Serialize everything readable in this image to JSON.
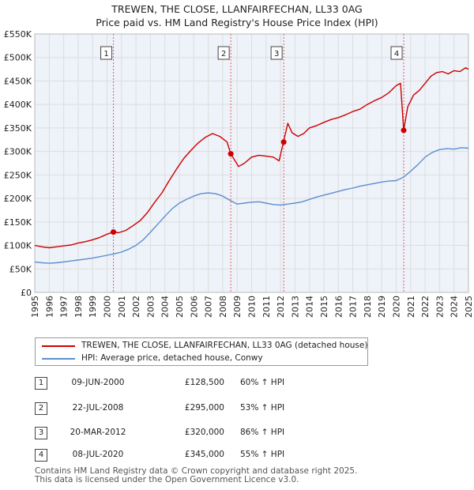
{
  "title_line1": "TREWEN, THE CLOSE, LLANFAIRFECHAN, LL33 0AG",
  "title_line2": "Price paid vs. HM Land Registry's House Price Index (HPI)",
  "legend": {
    "red_label": "TREWEN, THE CLOSE, LLANFAIRFECHAN, LL33 0AG (detached house)",
    "blue_label": "HPI: Average price, detached house, Conwy"
  },
  "transactions": [
    {
      "num": "1",
      "date": "09-JUN-2000",
      "price": "£128,500",
      "hpi": "60% ↑ HPI"
    },
    {
      "num": "2",
      "date": "22-JUL-2008",
      "price": "£295,000",
      "hpi": "53% ↑ HPI"
    },
    {
      "num": "3",
      "date": "20-MAR-2012",
      "price": "£320,000",
      "hpi": "86% ↑ HPI"
    },
    {
      "num": "4",
      "date": "08-JUL-2020",
      "price": "£345,000",
      "hpi": "55% ↑ HPI"
    }
  ],
  "footer": {
    "line1": "Contains HM Land Registry data © Crown copyright and database right 2025.",
    "line2": "This data is licensed under the Open Government Licence v3.0."
  },
  "colors": {
    "red": "#cc0000",
    "blue": "#5b8fcf",
    "grid": "#dddddd",
    "plot_bg": "#eef2f9",
    "marker_line": "#e06060"
  },
  "chart_data": {
    "type": "line",
    "xlim": [
      1995,
      2025
    ],
    "ylim": [
      0,
      550000
    ],
    "x_ticks": [
      "1995",
      "1996",
      "1997",
      "1998",
      "1999",
      "2000",
      "2001",
      "2002",
      "2003",
      "2004",
      "2005",
      "2006",
      "2007",
      "2008",
      "2009",
      "2010",
      "2011",
      "2012",
      "2013",
      "2014",
      "2015",
      "2016",
      "2017",
      "2018",
      "2019",
      "2020",
      "2021",
      "2022",
      "2023",
      "2024",
      "2025"
    ],
    "y_ticks": [
      {
        "value": 0,
        "label": "£0"
      },
      {
        "value": 50000,
        "label": "£50K"
      },
      {
        "value": 100000,
        "label": "£100K"
      },
      {
        "value": 150000,
        "label": "£150K"
      },
      {
        "value": 200000,
        "label": "£200K"
      },
      {
        "value": 250000,
        "label": "£250K"
      },
      {
        "value": 300000,
        "label": "£300K"
      },
      {
        "value": 350000,
        "label": "£350K"
      },
      {
        "value": 400000,
        "label": "£400K"
      },
      {
        "value": 450000,
        "label": "£450K"
      },
      {
        "value": 500000,
        "label": "£500K"
      },
      {
        "value": 550000,
        "label": "£550K"
      }
    ],
    "grid": true,
    "series": [
      {
        "name": "TREWEN, THE CLOSE, LLANFAIRFECHAN, LL33 0AG (detached house)",
        "color": "#cc0000",
        "x": [
          1995.0,
          1995.5,
          1996.0,
          1996.5,
          1997.0,
          1997.5,
          1998.0,
          1998.5,
          1999.0,
          1999.5,
          2000.0,
          2000.44,
          2000.8,
          2001.3,
          2001.8,
          2002.3,
          2002.8,
          2003.3,
          2003.8,
          2004.3,
          2004.8,
          2005.3,
          2005.8,
          2006.3,
          2006.8,
          2007.3,
          2007.8,
          2008.3,
          2008.56,
          2008.8,
          2009.1,
          2009.5,
          2010.0,
          2010.5,
          2011.0,
          2011.5,
          2011.9,
          2012.2,
          2012.5,
          2012.8,
          2013.2,
          2013.6,
          2014.0,
          2014.5,
          2015.0,
          2015.5,
          2016.0,
          2016.5,
          2017.0,
          2017.5,
          2018.0,
          2018.5,
          2019.0,
          2019.5,
          2020.0,
          2020.3,
          2020.52,
          2020.8,
          2021.2,
          2021.6,
          2022.0,
          2022.4,
          2022.8,
          2023.2,
          2023.6,
          2024.0,
          2024.4,
          2024.8,
          2025.0
        ],
        "y": [
          100000,
          97000,
          95000,
          97000,
          99000,
          101000,
          105000,
          108000,
          112000,
          117000,
          124000,
          128500,
          127000,
          132000,
          142000,
          153000,
          170000,
          192000,
          212000,
          238000,
          262000,
          285000,
          302000,
          318000,
          330000,
          338000,
          332000,
          320000,
          295000,
          283000,
          268000,
          275000,
          288000,
          292000,
          290000,
          288000,
          280000,
          320000,
          360000,
          340000,
          332000,
          338000,
          350000,
          355000,
          362000,
          368000,
          372000,
          378000,
          385000,
          390000,
          400000,
          408000,
          415000,
          425000,
          440000,
          445000,
          345000,
          395000,
          420000,
          430000,
          445000,
          460000,
          468000,
          470000,
          465000,
          472000,
          470000,
          478000,
          475000
        ]
      },
      {
        "name": "HPI: Average price, detached house, Conwy",
        "color": "#5b8fcf",
        "x": [
          1995.0,
          1995.5,
          1996.0,
          1996.5,
          1997.0,
          1997.5,
          1998.0,
          1998.5,
          1999.0,
          1999.5,
          2000.0,
          2000.5,
          2001.0,
          2001.5,
          2002.0,
          2002.5,
          2003.0,
          2003.5,
          2004.0,
          2004.5,
          2005.0,
          2005.5,
          2006.0,
          2006.5,
          2007.0,
          2007.5,
          2008.0,
          2008.5,
          2009.0,
          2009.5,
          2010.0,
          2010.5,
          2011.0,
          2011.5,
          2012.0,
          2012.5,
          2013.0,
          2013.5,
          2014.0,
          2014.5,
          2015.0,
          2015.5,
          2016.0,
          2016.5,
          2017.0,
          2017.5,
          2018.0,
          2018.5,
          2019.0,
          2019.5,
          2020.0,
          2020.5,
          2021.0,
          2021.5,
          2022.0,
          2022.5,
          2023.0,
          2023.5,
          2024.0,
          2024.5,
          2025.0
        ],
        "y": [
          65000,
          63000,
          62000,
          63000,
          65000,
          67000,
          69000,
          71000,
          73000,
          76000,
          79000,
          82000,
          86000,
          92000,
          100000,
          112000,
          128000,
          145000,
          162000,
          178000,
          190000,
          198000,
          205000,
          210000,
          212000,
          210000,
          205000,
          196000,
          188000,
          190000,
          192000,
          193000,
          190000,
          187000,
          186000,
          188000,
          190000,
          193000,
          198000,
          203000,
          207000,
          211000,
          215000,
          219000,
          222000,
          226000,
          229000,
          232000,
          235000,
          237000,
          238000,
          245000,
          258000,
          272000,
          288000,
          298000,
          304000,
          306000,
          305000,
          308000,
          307000
        ]
      }
    ],
    "sale_markers": [
      {
        "label": "1",
        "x": 2000.44,
        "y": 128500
      },
      {
        "label": "2",
        "x": 2008.56,
        "y": 295000
      },
      {
        "label": "3",
        "x": 2012.22,
        "y": 320000
      },
      {
        "label": "4",
        "x": 2020.52,
        "y": 345000
      }
    ]
  }
}
